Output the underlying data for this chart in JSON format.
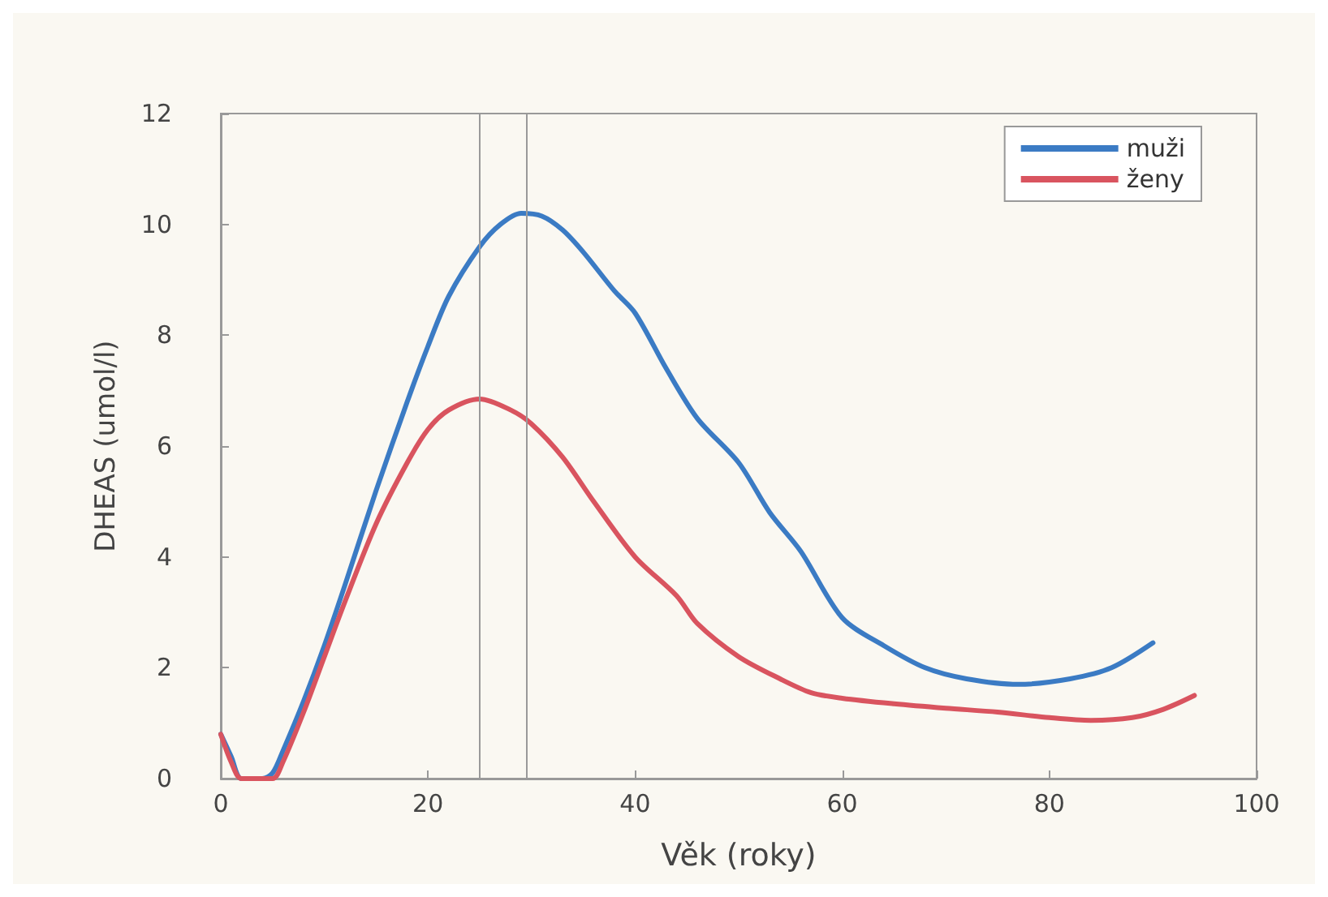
{
  "chart_data": {
    "type": "line",
    "xlabel": "Věk (roky)",
    "ylabel": "DHEAS (umol/l)",
    "xlim": [
      0,
      100
    ],
    "ylim": [
      0,
      12
    ],
    "xticks": [
      0,
      20,
      40,
      60,
      80,
      100
    ],
    "yticks": [
      0,
      2,
      4,
      6,
      8,
      10,
      12
    ],
    "grid": false,
    "legend": "top right",
    "marker": "none",
    "line_style": "solid",
    "ref_lines": [
      {
        "axis": "x",
        "value": 25,
        "color": "#9a9a9a"
      },
      {
        "axis": "x",
        "value": 29.5,
        "color": "#9a9a9a"
      }
    ],
    "series": [
      {
        "name": "muži",
        "color": "#3b7bc4",
        "x": [
          0,
          1,
          2,
          4,
          5,
          6,
          8,
          10,
          12,
          15,
          18,
          20,
          22,
          25,
          27,
          29,
          31,
          33,
          35,
          38,
          40,
          43,
          46,
          50,
          53,
          56,
          60,
          64,
          68,
          72,
          77,
          82,
          86,
          90
        ],
        "values": [
          0.8,
          0.4,
          0,
          0,
          0.1,
          0.5,
          1.4,
          2.4,
          3.5,
          5.2,
          6.8,
          7.8,
          8.7,
          9.6,
          10.0,
          10.2,
          10.15,
          9.9,
          9.5,
          8.8,
          8.4,
          7.4,
          6.5,
          5.7,
          4.8,
          4.1,
          2.9,
          2.4,
          2.0,
          1.8,
          1.7,
          1.8,
          2.0,
          2.45
        ]
      },
      {
        "name": "ženy",
        "color": "#d9545f",
        "x": [
          0,
          1,
          2,
          5,
          6,
          8,
          10,
          12,
          15,
          18,
          20,
          22,
          25,
          28,
          30,
          33,
          36,
          40,
          44,
          46,
          50,
          54,
          57,
          60,
          65,
          70,
          75,
          80,
          84,
          88,
          91,
          94
        ],
        "values": [
          0.8,
          0.3,
          0,
          0,
          0.3,
          1.2,
          2.2,
          3.2,
          4.6,
          5.7,
          6.3,
          6.65,
          6.85,
          6.65,
          6.4,
          5.8,
          5.0,
          4.0,
          3.3,
          2.8,
          2.2,
          1.8,
          1.55,
          1.45,
          1.35,
          1.27,
          1.2,
          1.1,
          1.05,
          1.1,
          1.25,
          1.5
        ]
      }
    ]
  }
}
